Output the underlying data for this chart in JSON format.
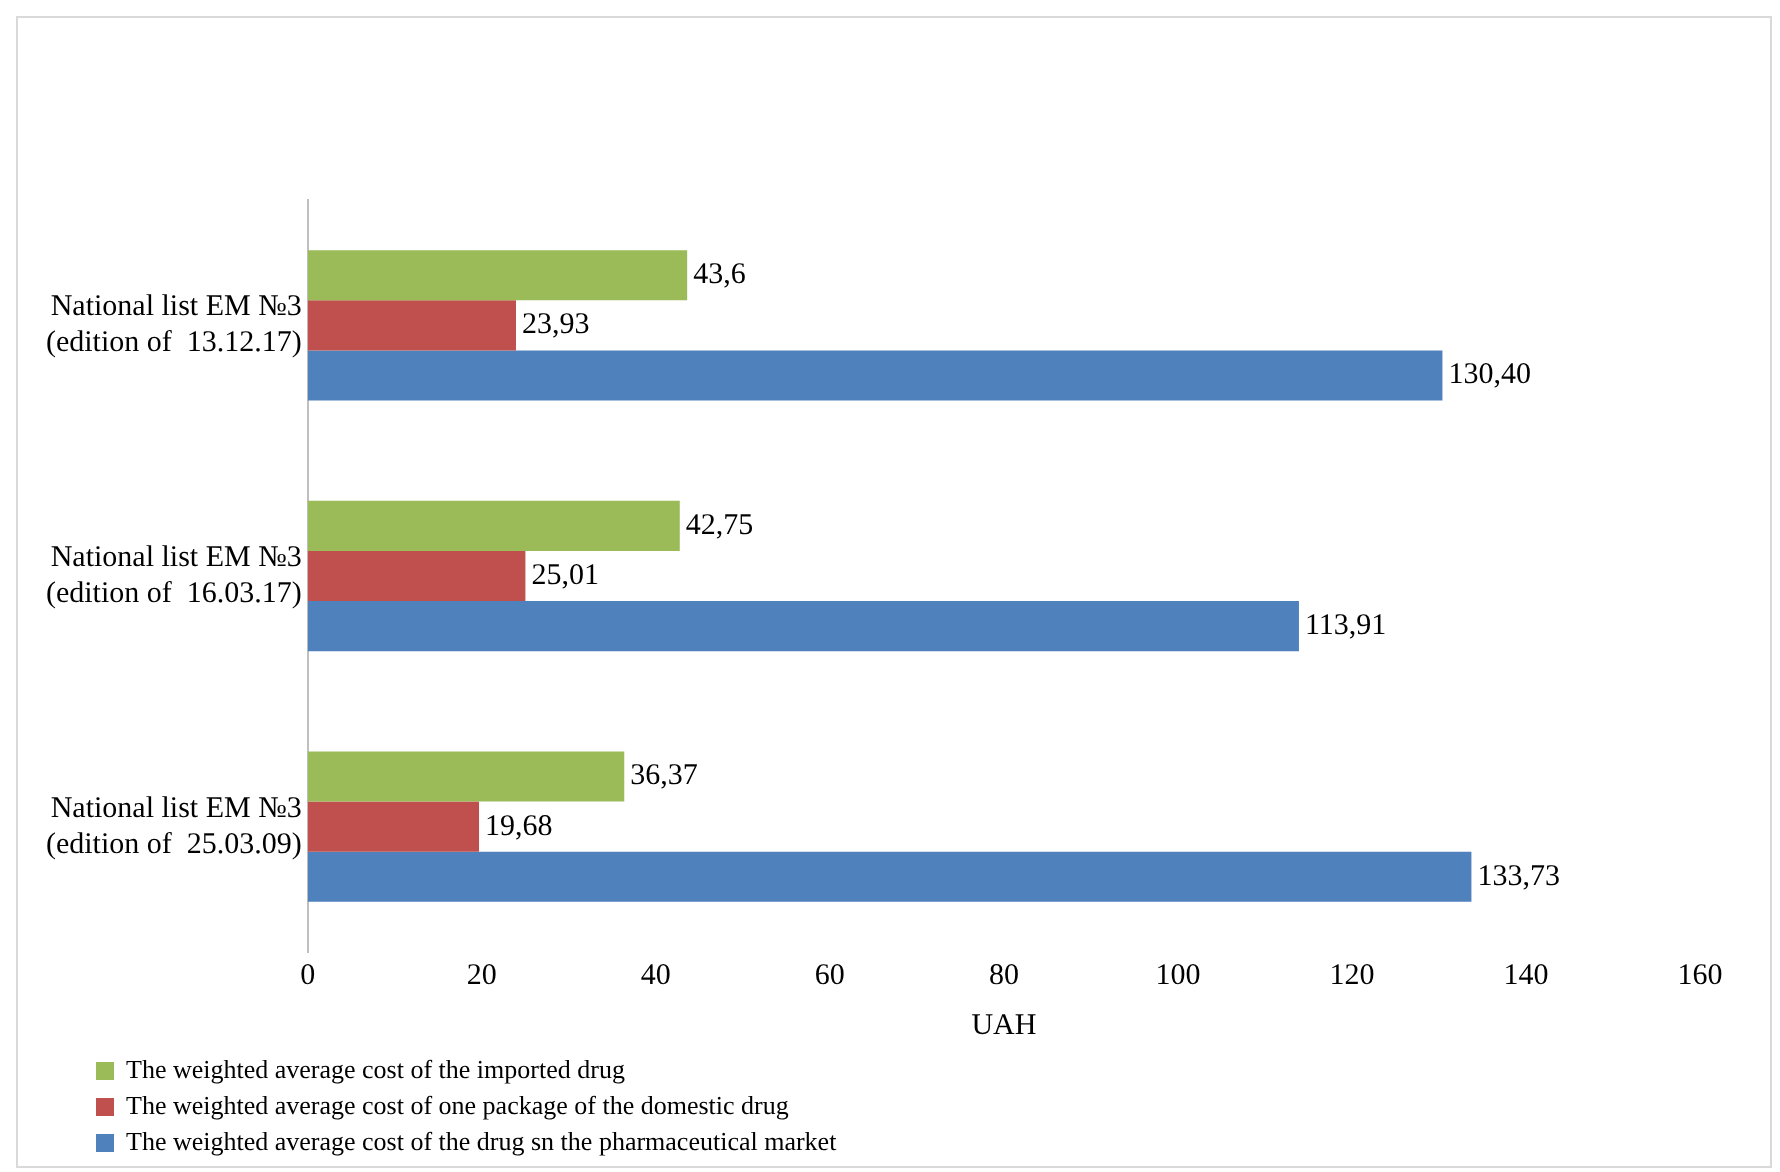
{
  "chart_data": {
    "type": "bar",
    "orientation": "horizontal",
    "xlabel": "UAH",
    "categories": [
      "National list EM №3\n(edition of  13.12.17)",
      "National list EM №3\n(edition of  16.03.17)",
      "National list EM №3\n(edition of  25.03.09)"
    ],
    "series": [
      {
        "name": "The weighted average cost of the imported drug",
        "color": "#9bbb59",
        "values": [
          43.6,
          42.75,
          36.37
        ],
        "value_labels": [
          "43,6",
          "42,75",
          "36,37"
        ]
      },
      {
        "name": "The weighted average cost of one package of the domestic drug",
        "color": "#c0504d",
        "values": [
          23.93,
          25.01,
          19.68
        ],
        "value_labels": [
          "23,93",
          "25,01",
          "19,68"
        ]
      },
      {
        "name": "The weighted average cost of the drug sn the pharmaceutical market",
        "color": "#4f81bd",
        "values": [
          130.4,
          113.91,
          133.73
        ],
        "value_labels": [
          "130,40",
          "113,91",
          "133,73"
        ]
      }
    ],
    "xlim": [
      0,
      160
    ],
    "xticks": [
      0,
      20,
      40,
      60,
      80,
      100,
      120,
      140,
      160
    ],
    "grid": false,
    "legend": "bottom"
  }
}
